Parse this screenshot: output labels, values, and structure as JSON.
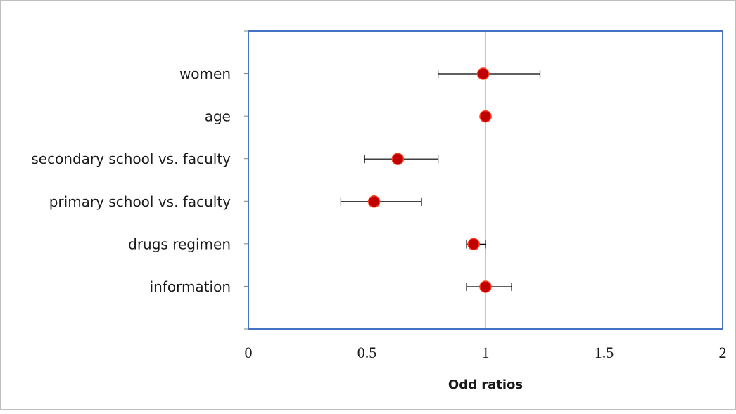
{
  "chart_data": {
    "type": "scatter",
    "subtype": "forest-plot",
    "title": "",
    "xlabel": "Odd ratios",
    "ylabel": "",
    "xlim": [
      0,
      2
    ],
    "x_ticks": [
      0,
      0.5,
      1,
      1.5,
      2
    ],
    "x_tick_labels": [
      "0",
      "0.5",
      "1",
      "1.5",
      "2"
    ],
    "grid": "vertical",
    "legend": "none",
    "categories": [
      "women",
      "age",
      "secondary school vs. faculty",
      "primary school vs. faculty",
      "drugs regimen",
      "information"
    ],
    "series": [
      {
        "point_estimate": [
          0.99,
          1.0,
          0.63,
          0.53,
          0.95,
          1.0
        ],
        "ci_lower": [
          0.8,
          1.0,
          0.49,
          0.39,
          0.92,
          0.92
        ],
        "ci_upper": [
          1.23,
          1.0,
          0.8,
          0.73,
          1.0,
          1.11
        ]
      }
    ],
    "colors": {
      "marker_fill": "#c00000",
      "marker_edge": "#ff3b1f",
      "plot_border": "#4472c4",
      "grid": "#8c8c8c",
      "error_bar": "#000000"
    }
  }
}
